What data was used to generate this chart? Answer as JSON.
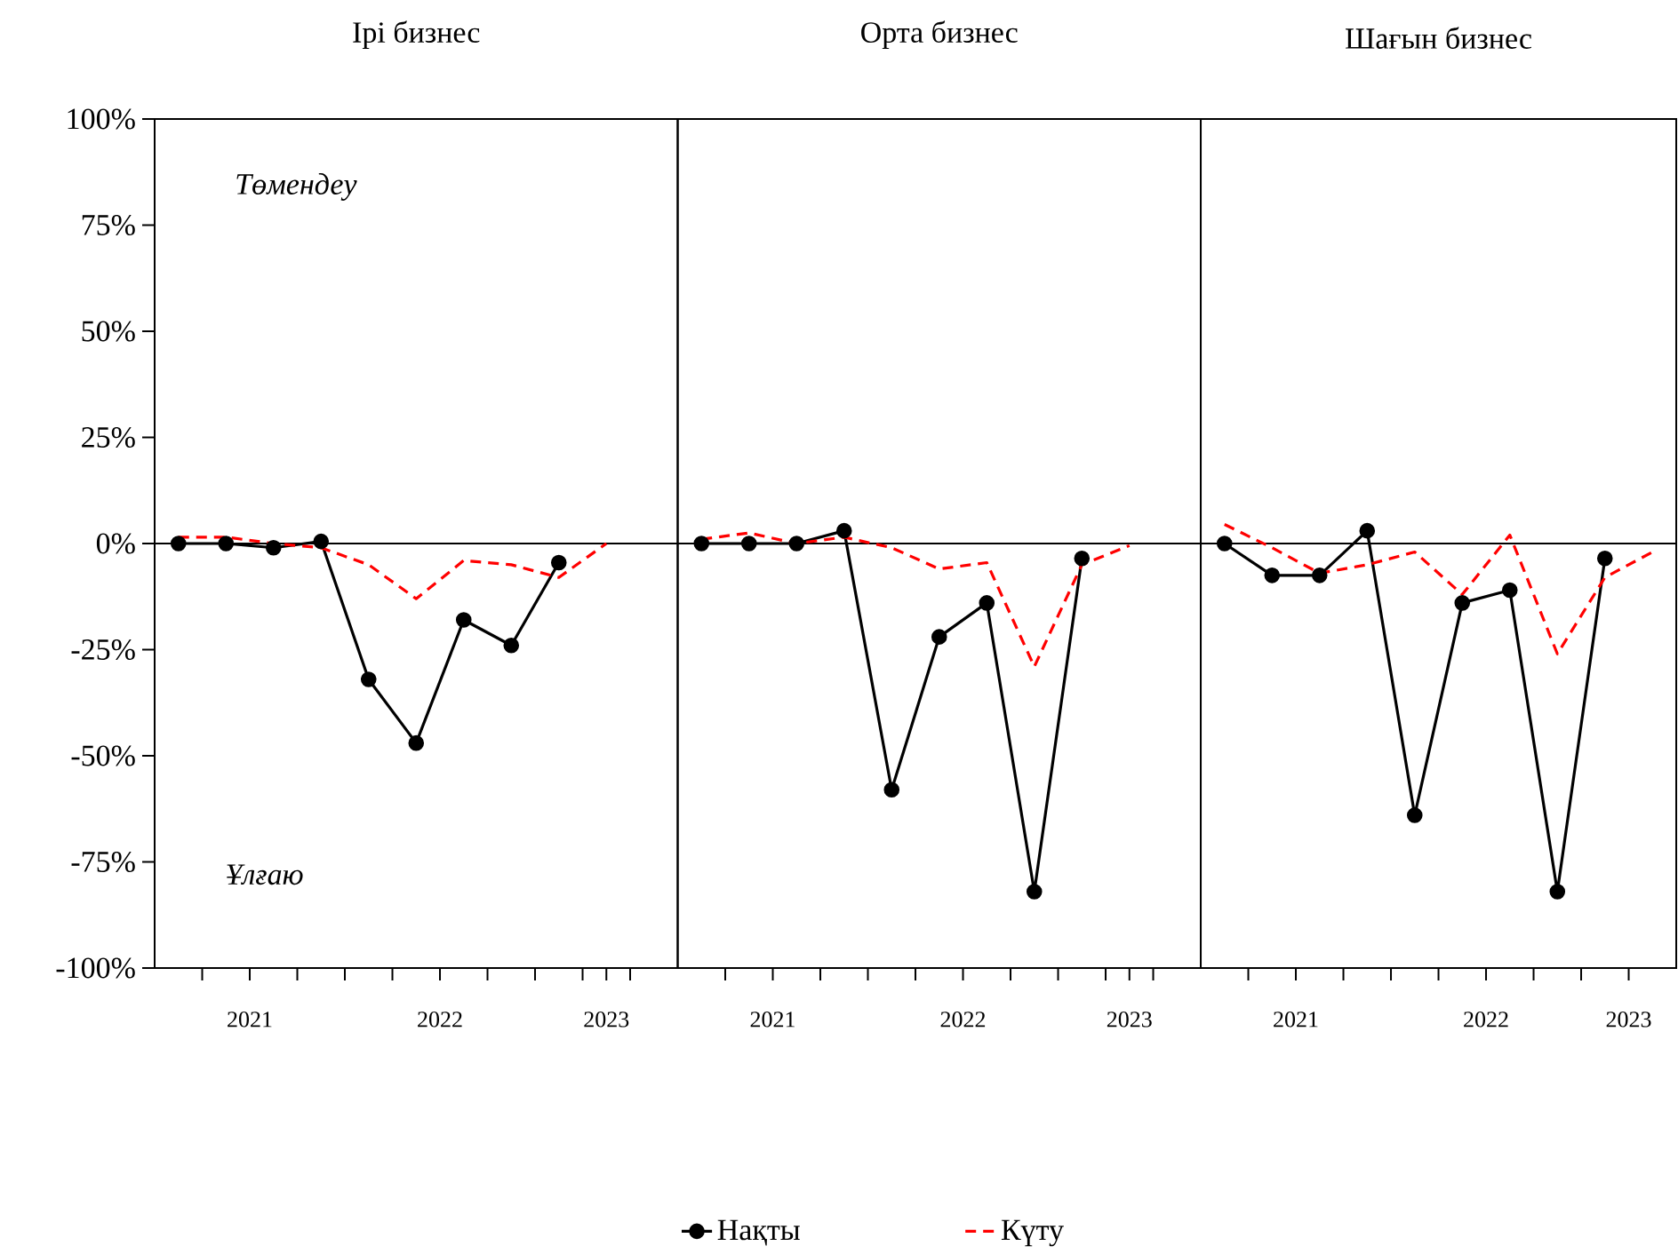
{
  "chart_data": [
    {
      "type": "line",
      "title": "Ірі бизнес",
      "xlim": [
        2021,
        2023.75
      ],
      "ylim": [
        -100,
        100
      ],
      "xticks": [
        {
          "value": 2021.25,
          "label": null
        },
        {
          "value": 2021.5,
          "label": "2021"
        },
        {
          "value": 2021.75,
          "label": null
        },
        {
          "value": 2022,
          "label": null
        },
        {
          "value": 2022.25,
          "label": null
        },
        {
          "value": 2022.5,
          "label": "2022"
        },
        {
          "value": 2022.75,
          "label": null
        },
        {
          "value": 2023,
          "label": null
        },
        {
          "value": 2023.25,
          "label": null
        },
        {
          "value": 2023.375,
          "label": "2023"
        },
        {
          "value": 2023.5,
          "label": null
        }
      ],
      "yticks": [
        {
          "value": -100,
          "label": "-100%"
        },
        {
          "value": -75,
          "label": "-75%"
        },
        {
          "value": -50,
          "label": "-50%"
        },
        {
          "value": -25,
          "label": "-25%"
        },
        {
          "value": 0,
          "label": "0%"
        },
        {
          "value": 25,
          "label": "25%"
        },
        {
          "value": 50,
          "label": "50%"
        },
        {
          "value": 75,
          "label": "75%"
        },
        {
          "value": 100,
          "label": "100%"
        }
      ],
      "ref_lines": [
        {
          "axis": "y",
          "value": 0,
          "color": "#000000"
        }
      ],
      "legend": "bottom",
      "annotations": [
        "Төмендеу",
        "Ұлғаю"
      ],
      "series": [
        {
          "name": "Нақты",
          "color": "#000000",
          "marker": "circle",
          "line_style": "solid",
          "x": [
            2021.125,
            2021.375,
            2021.625,
            2021.875,
            2022.125,
            2022.375,
            2022.625,
            2022.875,
            2023.125
          ],
          "values": [
            0,
            0,
            -1,
            0.5,
            -32,
            -47,
            -18,
            -24,
            -4.5
          ]
        },
        {
          "name": "Күту",
          "color": "#ff0000",
          "marker": "none",
          "line_style": "dashed",
          "x": [
            2021.125,
            2021.375,
            2021.625,
            2021.875,
            2022.125,
            2022.375,
            2022.625,
            2022.875,
            2023.125,
            2023.375
          ],
          "values": [
            1.5,
            1.5,
            0,
            -1,
            -5,
            -13,
            -4,
            -5,
            -8,
            0
          ]
        }
      ]
    },
    {
      "type": "line",
      "title": "Орта бизнес",
      "xlim": [
        2021,
        2023.75
      ],
      "ylim": [
        -100,
        100
      ],
      "tick_labels": "x",
      "xticks": [
        {
          "value": 2021.25,
          "label": null
        },
        {
          "value": 2021.5,
          "label": "2021"
        },
        {
          "value": 2021.75,
          "label": null
        },
        {
          "value": 2022,
          "label": null
        },
        {
          "value": 2022.25,
          "label": null
        },
        {
          "value": 2022.5,
          "label": "2022"
        },
        {
          "value": 2022.75,
          "label": null
        },
        {
          "value": 2023,
          "label": null
        },
        {
          "value": 2023.25,
          "label": null
        },
        {
          "value": 2023.375,
          "label": "2023"
        },
        {
          "value": 2023.5,
          "label": null
        }
      ],
      "ref_lines": [
        {
          "axis": "y",
          "value": 0,
          "color": "#000000"
        }
      ],
      "series": [
        {
          "color": "#000000",
          "marker": "circle",
          "line_style": "solid",
          "x": [
            2021.125,
            2021.375,
            2021.625,
            2021.875,
            2022.125,
            2022.375,
            2022.625,
            2022.875,
            2023.125
          ],
          "values": [
            0,
            0,
            0,
            3,
            -58,
            -22,
            -14,
            -82,
            -3.5
          ]
        },
        {
          "color": "#ff0000",
          "marker": "none",
          "line_style": "dashed",
          "x": [
            2021.125,
            2021.375,
            2021.625,
            2021.875,
            2022.125,
            2022.375,
            2022.625,
            2022.875,
            2023.125,
            2023.375
          ],
          "values": [
            1,
            2.5,
            0,
            1.5,
            -1,
            -6,
            -4.5,
            -29,
            -5,
            -0.5
          ]
        }
      ]
    },
    {
      "type": "line",
      "title": "Шағын бизнес",
      "xlim": [
        2021,
        2023.5
      ],
      "ylim": [
        -100,
        100
      ],
      "tick_labels": "x",
      "xticks": [
        {
          "value": 2021.25,
          "label": null
        },
        {
          "value": 2021.5,
          "label": "2021"
        },
        {
          "value": 2021.75,
          "label": null
        },
        {
          "value": 2022,
          "label": null
        },
        {
          "value": 2022.25,
          "label": null
        },
        {
          "value": 2022.5,
          "label": "2022"
        },
        {
          "value": 2022.75,
          "label": null
        },
        {
          "value": 2023,
          "label": null
        },
        {
          "value": 2023.25,
          "label": "2023"
        }
      ],
      "ref_lines": [
        {
          "axis": "y",
          "value": 0,
          "color": "#000000"
        }
      ],
      "series": [
        {
          "color": "#000000",
          "marker": "circle",
          "line_style": "solid",
          "x": [
            2021.125,
            2021.375,
            2021.625,
            2021.875,
            2022.125,
            2022.375,
            2022.625,
            2022.875,
            2023.125
          ],
          "values": [
            0,
            -7.5,
            -7.5,
            3,
            -64,
            -14,
            -11,
            -82,
            -3.5
          ]
        },
        {
          "color": "#ff0000",
          "marker": "none",
          "line_style": "dashed",
          "x": [
            2021.125,
            2021.375,
            2021.625,
            2021.875,
            2022.125,
            2022.375,
            2022.625,
            2022.875,
            2023.125,
            2023.375
          ],
          "values": [
            4.5,
            -1,
            -7,
            -5,
            -2,
            -12,
            2,
            -26,
            -8,
            -2
          ]
        }
      ]
    }
  ]
}
